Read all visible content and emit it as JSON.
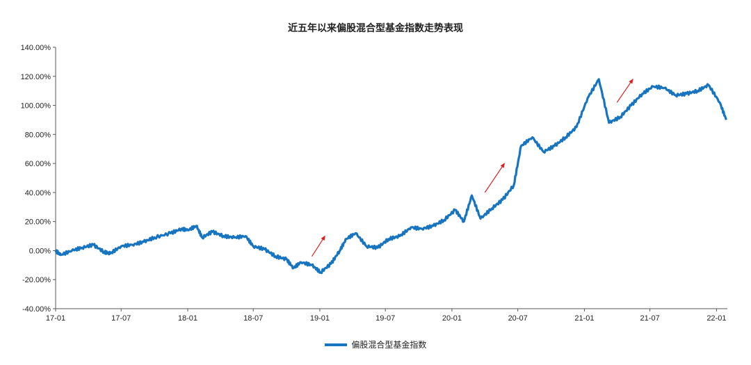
{
  "chart_data": {
    "type": "line",
    "title": "近五年以来偏股混合型基金指数走势表现",
    "xlabel": "",
    "ylabel": "",
    "x_ticks": [
      "17-01",
      "17-07",
      "18-01",
      "18-07",
      "19-01",
      "19-07",
      "20-01",
      "20-07",
      "21-01",
      "21-07",
      "22-01"
    ],
    "y_ticks": [
      "-40.00%",
      "-20.00%",
      "0.00%",
      "20.00%",
      "40.00%",
      "60.00%",
      "80.00%",
      "100.00%",
      "120.00%",
      "140.00%"
    ],
    "ylim": [
      -40,
      140
    ],
    "y_unit": "%",
    "grid": false,
    "legend_position": "bottom",
    "series": [
      {
        "name": "偏股混合型基金指数",
        "color": "#1674c0",
        "points": [
          [
            "2017-01-01",
            0
          ],
          [
            "2017-01-15",
            -3
          ],
          [
            "2017-02-15",
            0
          ],
          [
            "2017-03-15",
            2
          ],
          [
            "2017-04-15",
            4
          ],
          [
            "2017-05-15",
            -1
          ],
          [
            "2017-06-01",
            -2
          ],
          [
            "2017-07-01",
            3
          ],
          [
            "2017-08-01",
            4
          ],
          [
            "2017-09-01",
            6
          ],
          [
            "2017-10-01",
            9
          ],
          [
            "2017-11-15",
            12
          ],
          [
            "2017-12-15",
            15
          ],
          [
            "2018-01-01",
            14
          ],
          [
            "2018-01-25",
            17
          ],
          [
            "2018-02-10",
            9
          ],
          [
            "2018-03-10",
            13
          ],
          [
            "2018-04-10",
            10
          ],
          [
            "2018-05-10",
            9
          ],
          [
            "2018-06-10",
            10
          ],
          [
            "2018-07-01",
            3
          ],
          [
            "2018-08-01",
            1
          ],
          [
            "2018-09-01",
            -4
          ],
          [
            "2018-10-01",
            -6
          ],
          [
            "2018-10-20",
            -12
          ],
          [
            "2018-11-10",
            -8
          ],
          [
            "2018-12-10",
            -10
          ],
          [
            "2019-01-03",
            -15
          ],
          [
            "2019-02-01",
            -9
          ],
          [
            "2019-02-25",
            0
          ],
          [
            "2019-03-15",
            8
          ],
          [
            "2019-04-10",
            12
          ],
          [
            "2019-05-10",
            3
          ],
          [
            "2019-06-10",
            2
          ],
          [
            "2019-07-10",
            8
          ],
          [
            "2019-08-10",
            10
          ],
          [
            "2019-09-10",
            16
          ],
          [
            "2019-10-10",
            15
          ],
          [
            "2019-11-10",
            17
          ],
          [
            "2019-12-10",
            21
          ],
          [
            "2020-01-10",
            28
          ],
          [
            "2020-02-03",
            20
          ],
          [
            "2020-02-25",
            38
          ],
          [
            "2020-03-20",
            22
          ],
          [
            "2020-04-20",
            29
          ],
          [
            "2020-05-20",
            35
          ],
          [
            "2020-06-20",
            45
          ],
          [
            "2020-07-10",
            72
          ],
          [
            "2020-08-10",
            78
          ],
          [
            "2020-09-10",
            68
          ],
          [
            "2020-10-10",
            72
          ],
          [
            "2020-11-10",
            78
          ],
          [
            "2020-12-10",
            85
          ],
          [
            "2021-01-10",
            105
          ],
          [
            "2021-02-10",
            118
          ],
          [
            "2021-03-10",
            88
          ],
          [
            "2021-04-10",
            92
          ],
          [
            "2021-05-10",
            100
          ],
          [
            "2021-06-10",
            108
          ],
          [
            "2021-07-10",
            113
          ],
          [
            "2021-08-10",
            112
          ],
          [
            "2021-09-10",
            107
          ],
          [
            "2021-10-10",
            108
          ],
          [
            "2021-11-10",
            110
          ],
          [
            "2021-12-10",
            114
          ],
          [
            "2022-01-10",
            102
          ],
          [
            "2022-01-28",
            90
          ]
        ]
      }
    ],
    "annotations": [
      {
        "type": "arrow",
        "color": "#e02020",
        "from": [
          "2018-12-10",
          -4
        ],
        "to": [
          "2019-01-15",
          10
        ]
      },
      {
        "type": "arrow",
        "color": "#e02020",
        "from": [
          "2020-04-01",
          40
        ],
        "to": [
          "2020-05-25",
          60
        ]
      },
      {
        "type": "arrow",
        "color": "#e02020",
        "from": [
          "2021-04-01",
          102
        ],
        "to": [
          "2021-05-15",
          118
        ]
      }
    ]
  }
}
